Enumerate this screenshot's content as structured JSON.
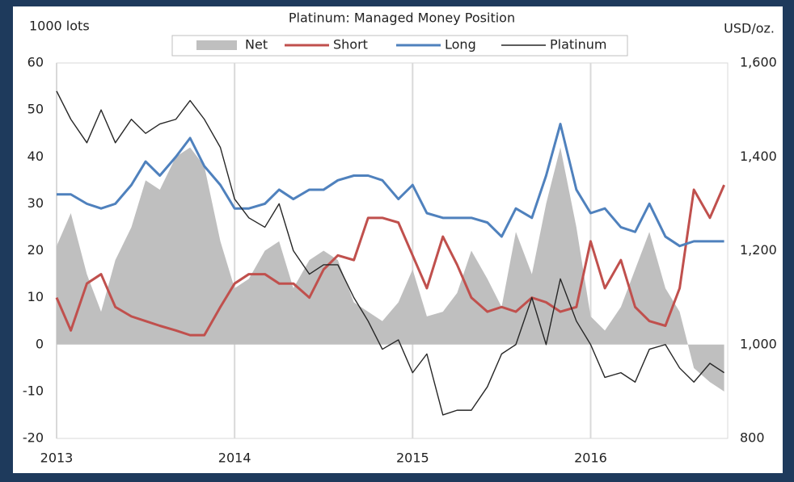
{
  "chart_data": {
    "type": "line",
    "title": "Platinum: Managed Money Position",
    "y_label": "1000 lots",
    "y2_label": "USD/oz.",
    "x": [
      2013.0,
      2013.08,
      2013.17,
      2013.25,
      2013.33,
      2013.42,
      2013.5,
      2013.58,
      2013.67,
      2013.75,
      2013.83,
      2013.92,
      2014.0,
      2014.08,
      2014.17,
      2014.25,
      2014.33,
      2014.42,
      2014.5,
      2014.58,
      2014.67,
      2014.75,
      2014.83,
      2014.92,
      2015.0,
      2015.08,
      2015.17,
      2015.25,
      2015.33,
      2015.42,
      2015.5,
      2015.58,
      2015.67,
      2015.75,
      2015.83,
      2015.92,
      2016.0,
      2016.08,
      2016.17,
      2016.25,
      2016.33,
      2016.42,
      2016.5,
      2016.58,
      2016.67,
      2016.75
    ],
    "xlim": [
      2013,
      2016.77
    ],
    "xticks": [
      2013,
      2014,
      2015,
      2016
    ],
    "ylim": [
      -20,
      60
    ],
    "yticks": [
      -20,
      -10,
      0,
      10,
      20,
      30,
      40,
      50,
      60
    ],
    "y2lim": [
      800,
      1600
    ],
    "y2ticks": [
      {
        "value": 800,
        "label": "800"
      },
      {
        "value": 1000,
        "label": "1,000"
      },
      {
        "value": 1200,
        "label": "1,200"
      },
      {
        "value": 1400,
        "label": "1,400"
      },
      {
        "value": 1600,
        "label": "1,600"
      }
    ],
    "grid": "x",
    "series": [
      {
        "name": "Net",
        "color": "#bfbfbf",
        "style": "area",
        "values": [
          21,
          28,
          15,
          7,
          18,
          25,
          35,
          33,
          40,
          42,
          38,
          22,
          12,
          14,
          20,
          22,
          12,
          18,
          20,
          18,
          9,
          7,
          5,
          9,
          16,
          6,
          7,
          11,
          20,
          14,
          8,
          24,
          15,
          30,
          42,
          25,
          6,
          3,
          8,
          16,
          24,
          12,
          7,
          -5,
          -8,
          -10
        ]
      },
      {
        "name": "Short",
        "color": "#c0504d",
        "values": [
          10,
          3,
          13,
          15,
          8,
          6,
          5,
          4,
          3,
          2,
          2,
          8,
          13,
          15,
          15,
          13,
          13,
          10,
          16,
          19,
          18,
          27,
          27,
          26,
          19,
          12,
          23,
          17,
          10,
          7,
          8,
          7,
          10,
          9,
          7,
          8,
          22,
          12,
          18,
          8,
          5,
          4,
          12,
          33,
          27,
          34
        ]
      },
      {
        "name": "Long",
        "color": "#4f81bd",
        "values": [
          32,
          32,
          30,
          29,
          30,
          34,
          39,
          36,
          40,
          44,
          38,
          34,
          29,
          29,
          30,
          33,
          31,
          33,
          33,
          35,
          36,
          36,
          35,
          31,
          34,
          28,
          27,
          27,
          27,
          26,
          23,
          29,
          27,
          36,
          47,
          33,
          28,
          29,
          25,
          24,
          30,
          23,
          21,
          22,
          22,
          22
        ]
      },
      {
        "name": "Platinum",
        "color": "#262626",
        "axis": "y2",
        "values": [
          1540,
          1480,
          1430,
          1500,
          1430,
          1480,
          1450,
          1470,
          1480,
          1520,
          1480,
          1420,
          1310,
          1270,
          1250,
          1300,
          1200,
          1150,
          1170,
          1170,
          1100,
          1050,
          990,
          1010,
          940,
          980,
          850,
          860,
          860,
          910,
          980,
          1000,
          1100,
          1000,
          1140,
          1050,
          1000,
          930,
          940,
          920,
          990,
          1000,
          950,
          920,
          960,
          940
        ]
      }
    ]
  }
}
